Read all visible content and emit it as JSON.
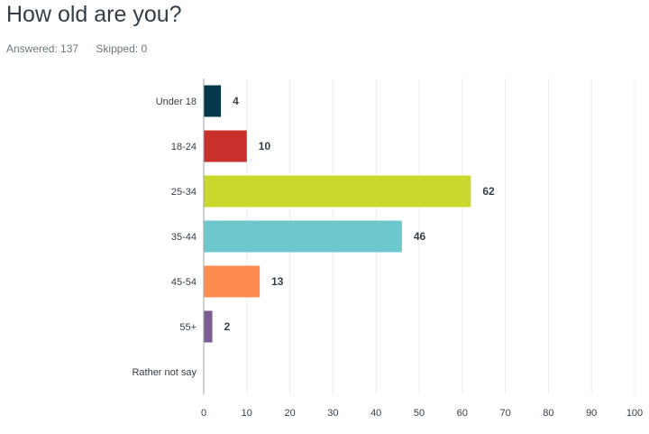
{
  "question": {
    "title": "How old are you?",
    "answered": "Answered: 137",
    "skipped": "Skipped: 0"
  },
  "chart_data": {
    "type": "bar",
    "orientation": "horizontal",
    "title": "How old are you?",
    "categories": [
      "Under 18",
      "18-24",
      "25-34",
      "35-44",
      "45-54",
      "55+",
      "Rather not say"
    ],
    "values": [
      4,
      10,
      62,
      46,
      13,
      2,
      0
    ],
    "value_labels": [
      "4",
      "10",
      "62",
      "46",
      "13",
      "2",
      ""
    ],
    "colors": [
      "#05384b",
      "#c9302c",
      "#cad82e",
      "#6cc8cd",
      "#ff8b4f",
      "#7a5e93",
      "#cccccc"
    ],
    "xlim": [
      0,
      100
    ],
    "xticks": [
      0,
      10,
      20,
      30,
      40,
      50,
      60,
      70,
      80,
      90,
      100
    ],
    "xlabel": "",
    "ylabel": "",
    "grid": true
  }
}
